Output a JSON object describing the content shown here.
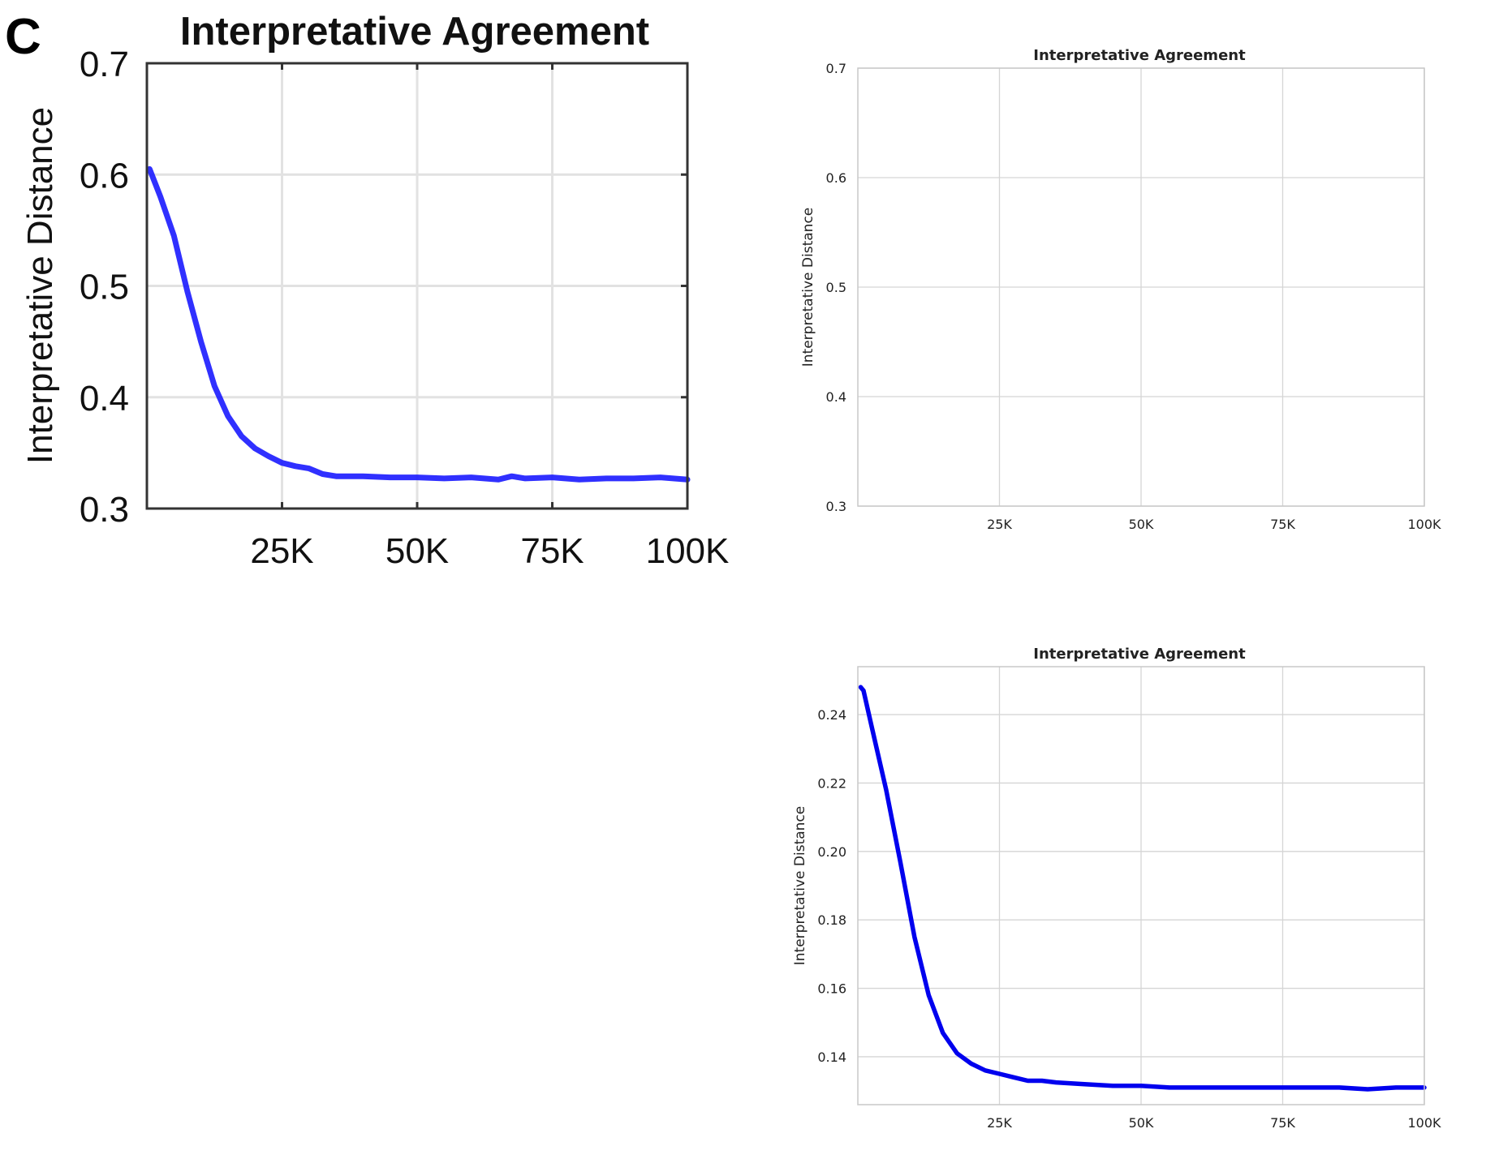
{
  "chart_data": [
    {
      "panel_label": "C",
      "type": "line",
      "title": "Interpretative Agreement",
      "xlabel": "",
      "ylabel": "Interpretative Distance",
      "xlim": [
        0,
        100000
      ],
      "ylim": [
        0.3,
        0.7
      ],
      "x_ticks": [
        25000,
        50000,
        75000,
        100000
      ],
      "x_tick_labels": [
        "25K",
        "50K",
        "75K",
        "100K"
      ],
      "y_ticks": [
        0.3,
        0.4,
        0.5,
        0.6,
        0.7
      ],
      "y_tick_labels": [
        "0.3",
        "0.4",
        "0.5",
        "0.6",
        "0.7"
      ],
      "grid": true,
      "color": "#1a1aff",
      "series": [
        {
          "x": [
            500,
            2500,
            5000,
            7500,
            10000,
            12500,
            15000,
            17500,
            20000,
            22500,
            25000,
            27500,
            30000,
            32500,
            35000,
            40000,
            45000,
            50000,
            55000,
            60000,
            65000,
            67500,
            70000,
            75000,
            80000,
            85000,
            90000,
            95000,
            100000
          ],
          "y": [
            0.605,
            0.58,
            0.545,
            0.495,
            0.45,
            0.41,
            0.383,
            0.365,
            0.354,
            0.347,
            0.341,
            0.338,
            0.336,
            0.331,
            0.329,
            0.329,
            0.328,
            0.328,
            0.327,
            0.328,
            0.326,
            0.329,
            0.327,
            0.328,
            0.326,
            0.327,
            0.327,
            0.328,
            0.326
          ]
        }
      ]
    },
    {
      "type": "line",
      "title": "Interpretative Agreement",
      "xlabel": "",
      "ylabel": "Interpretative Distance",
      "xlim": [
        0,
        100000
      ],
      "ylim": [
        0.3,
        0.7
      ],
      "x_ticks": [
        25000,
        50000,
        75000,
        100000
      ],
      "x_tick_labels": [
        "25K",
        "50K",
        "75K",
        "100K"
      ],
      "y_ticks": [
        0.3,
        0.4,
        0.5,
        0.6,
        0.7
      ],
      "y_tick_labels": [
        "0.3",
        "0.4",
        "0.5",
        "0.6",
        "0.7"
      ],
      "grid": true,
      "series": []
    },
    {
      "type": "line",
      "title": "Interpretative Agreement",
      "xlabel": "",
      "ylabel": "Interpretative Distance",
      "xlim": [
        0,
        100000
      ],
      "ylim": [
        0.126,
        0.254
      ],
      "x_ticks": [
        25000,
        50000,
        75000,
        100000
      ],
      "x_tick_labels": [
        "25K",
        "50K",
        "75K",
        "100K"
      ],
      "y_ticks": [
        0.14,
        0.16,
        0.18,
        0.2,
        0.22,
        0.24
      ],
      "y_tick_labels": [
        "0.14",
        "0.16",
        "0.18",
        "0.20",
        "0.22",
        "0.24"
      ],
      "grid": true,
      "color": "#0000ee",
      "series": [
        {
          "x": [
            500,
            1000,
            2500,
            5000,
            7500,
            10000,
            12500,
            15000,
            17500,
            20000,
            22500,
            25000,
            27500,
            30000,
            32500,
            35000,
            40000,
            45000,
            50000,
            55000,
            60000,
            65000,
            70000,
            75000,
            80000,
            85000,
            90000,
            95000,
            100000
          ],
          "y": [
            0.248,
            0.247,
            0.236,
            0.218,
            0.197,
            0.175,
            0.158,
            0.147,
            0.141,
            0.138,
            0.136,
            0.135,
            0.134,
            0.133,
            0.133,
            0.1325,
            0.132,
            0.1315,
            0.1315,
            0.131,
            0.131,
            0.131,
            0.131,
            0.131,
            0.131,
            0.131,
            0.1305,
            0.131,
            0.131
          ]
        }
      ]
    }
  ]
}
